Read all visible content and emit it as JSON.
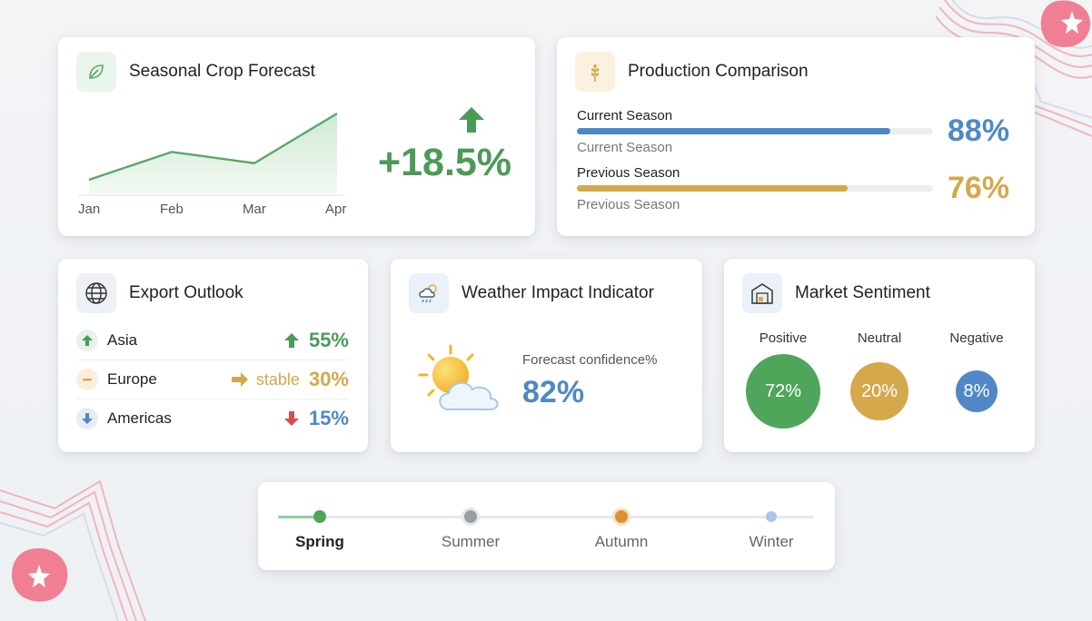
{
  "colors": {
    "green": "#4c9a57",
    "blue": "#4f88c5",
    "gold": "#d4a84b",
    "red": "#d2504c",
    "pink": "#f0738a"
  },
  "forecast": {
    "title": "Seasonal Crop Forecast",
    "icon": "leaf-icon",
    "change": "+18.5%",
    "months": [
      "Jan",
      "Feb",
      "Mar",
      "Apr"
    ],
    "trend": [
      0.0,
      0.42,
      0.25,
      1.0
    ]
  },
  "production": {
    "title": "Production Comparison",
    "icon": "wheat-icon",
    "rows": [
      {
        "label": "Current Season",
        "sub": "Current Season",
        "pct": "88%",
        "value": 0.88,
        "color": "#4f88c5"
      },
      {
        "label": "Previous Season",
        "sub": "Previous Season",
        "pct": "76%",
        "value": 0.76,
        "color": "#d4a84b"
      }
    ]
  },
  "export": {
    "title": "Export Outlook",
    "icon": "globe-icon",
    "rows": [
      {
        "region": "Asia",
        "trend_icon": "arrow-up-icon",
        "pct": "55%"
      },
      {
        "region": "Europe",
        "trend_icon": "arrow-right-icon",
        "status": "stable",
        "pct": "30%"
      },
      {
        "region": "Americas",
        "trend_icon": "arrow-down-icon",
        "pct": "15%"
      }
    ]
  },
  "weather": {
    "title": "Weather Impact Indicator",
    "icon": "weather-icon",
    "illustration": "sun-cloud-icon",
    "label": "Forecast confidence%",
    "value": "82%"
  },
  "market": {
    "title": "Market Sentiment",
    "icon": "warehouse-icon",
    "items": [
      {
        "label": "Positive",
        "value": "72%"
      },
      {
        "label": "Neutral",
        "value": "20%"
      },
      {
        "label": "Negative",
        "value": "8%"
      }
    ]
  },
  "seasons": {
    "items": [
      "Spring",
      "Summer",
      "Autumn",
      "Winter"
    ],
    "active": "Spring"
  }
}
